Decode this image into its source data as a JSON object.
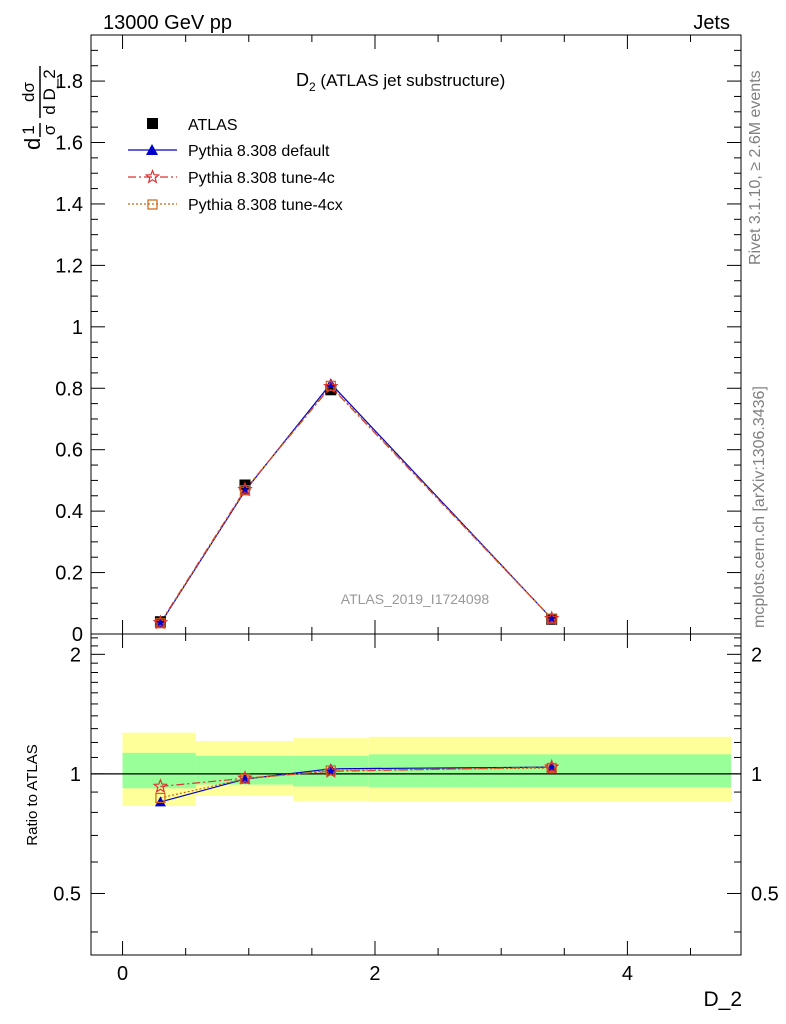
{
  "header": {
    "left": "13000 GeV pp",
    "right": "Jets"
  },
  "side_texts": {
    "top": "Rivet 3.1.10, ≥ 2.6M events",
    "bottom": "mcplots.cern.ch [arXiv:1306.3436]"
  },
  "watermark": "ATLAS_2019_I1724098",
  "chart_data": {
    "type": "line",
    "title_main": "D",
    "title_sub": "2",
    "title_rest": " (ATLAS jet substructure)",
    "xlabel": "D_2",
    "ylabel": {
      "prefix": "d",
      "frac1_num": "1",
      "frac1_den": "σ",
      "frac2_num": "dσ",
      "frac2_den": "d D_2"
    },
    "ratio_ylabel": "Ratio to ATLAS",
    "xlim": [
      -0.25,
      4.9
    ],
    "ylim": [
      0,
      1.95
    ],
    "ratio_ylim": [
      0.35,
      2.25
    ],
    "x_ticks": [
      0,
      2,
      4
    ],
    "y_ticks": [
      0,
      0.2,
      0.4,
      0.6,
      0.8,
      1,
      1.2,
      1.4,
      1.6,
      1.8
    ],
    "y_tick_labels": [
      "0",
      "0.2",
      "0.4",
      "0.6",
      "0.8",
      "1",
      "1.2",
      "1.4",
      "1.6",
      "1.8"
    ],
    "ratio_ticks": [
      0.5,
      1,
      2
    ],
    "ratio_tick_labels": [
      "0.5",
      "1",
      "2"
    ],
    "bins": [
      {
        "lo": 0.0,
        "hi": 0.58
      },
      {
        "lo": 0.58,
        "hi": 1.35
      },
      {
        "lo": 1.35,
        "hi": 1.95
      },
      {
        "lo": 1.95,
        "hi": 4.9
      }
    ],
    "x": [
      0.3,
      0.97,
      1.65,
      3.4
    ],
    "data_points": [
      0.04,
      0.485,
      0.795,
      0.048
    ],
    "band_inner": [
      {
        "lo": 0.92,
        "hi": 1.13
      },
      {
        "lo": 0.94,
        "hi": 1.11
      },
      {
        "lo": 0.93,
        "hi": 1.11
      },
      {
        "lo": 0.925,
        "hi": 1.12
      }
    ],
    "band_outer": [
      {
        "lo": 0.83,
        "hi": 1.27
      },
      {
        "lo": 0.88,
        "hi": 1.21
      },
      {
        "lo": 0.855,
        "hi": 1.23
      },
      {
        "lo": 0.85,
        "hi": 1.24
      }
    ],
    "series": [
      {
        "name": "ATLAS",
        "color": "#000000"
      },
      {
        "name": "Pythia 8.308 default",
        "color": "#0000cc",
        "values": [
          0.034,
          0.466,
          0.815,
          0.05
        ],
        "ratio": [
          0.85,
          0.97,
          1.03,
          1.04
        ]
      },
      {
        "name": "Pythia 8.308 tune-4c",
        "color": "#dd3333",
        "values": [
          0.037,
          0.47,
          0.805,
          0.05
        ],
        "ratio": [
          0.93,
          0.975,
          1.015,
          1.04
        ]
      },
      {
        "name": "Pythia 8.308 tune-4cx",
        "color": "#cc6611",
        "values": [
          0.035,
          0.468,
          0.808,
          0.05
        ],
        "ratio": [
          0.87,
          0.972,
          1.02,
          1.035
        ]
      }
    ],
    "colors": {
      "band_inner": "#99ff99",
      "band_outer": "#ffff99"
    }
  }
}
